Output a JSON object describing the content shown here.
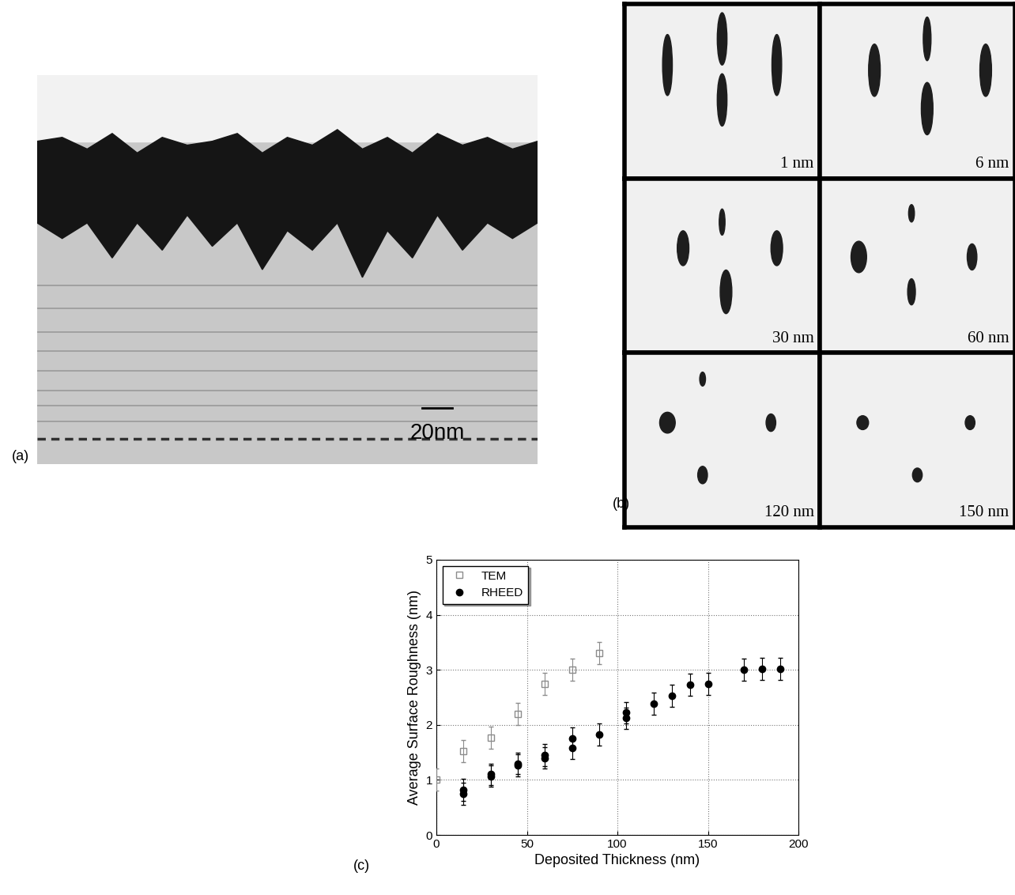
{
  "panel_a": {
    "label": "(a)",
    "scale_bar": "20nm"
  },
  "panel_b": {
    "label": "(b)",
    "frames": [
      "1 nm",
      "6 nm",
      "30 nm",
      "60 nm",
      "120 nm",
      "150 nm"
    ]
  },
  "panel_c": {
    "label": "(c)"
  },
  "chart_data": {
    "type": "scatter",
    "x_label": "Deposited Thickness (nm)",
    "y_label": "Average Surface Roughness (nm)",
    "xlim": [
      0,
      200
    ],
    "xticks": [
      0,
      50,
      100,
      150,
      200
    ],
    "ylim": [
      0,
      5
    ],
    "yticks": [
      0,
      1,
      2,
      3,
      4,
      5
    ],
    "grid": true,
    "legend": "upper left",
    "series": [
      {
        "name": "TEM",
        "color": "#8c8c8c",
        "marker": "square_open",
        "x": [
          0,
          15,
          30,
          45,
          60,
          75,
          90
        ],
        "values": [
          1.0,
          1.52,
          1.77,
          2.2,
          2.75,
          3.0,
          3.3
        ],
        "errors": [
          0.2,
          0.2,
          0.2,
          0.2,
          0.2,
          0.2,
          0.2
        ]
      },
      {
        "name": "RHEED",
        "color": "#000000",
        "marker": "circle",
        "x": [
          15,
          15,
          30,
          30,
          45,
          45,
          60,
          60,
          75,
          75,
          90,
          105,
          105,
          120,
          130,
          140,
          150,
          170,
          180,
          190
        ],
        "values": [
          0.75,
          0.82,
          1.07,
          1.1,
          1.27,
          1.3,
          1.4,
          1.45,
          1.58,
          1.76,
          1.83,
          2.12,
          2.22,
          2.38,
          2.53,
          2.73,
          2.75,
          3.0,
          3.02,
          3.02
        ],
        "errors": [
          0.2,
          0.2,
          0.2,
          0.2,
          0.2,
          0.2,
          0.2,
          0.2,
          0.2,
          0.2,
          0.2,
          0.2,
          0.2,
          0.2,
          0.2,
          0.2,
          0.2,
          0.2,
          0.2,
          0.2
        ]
      }
    ]
  }
}
